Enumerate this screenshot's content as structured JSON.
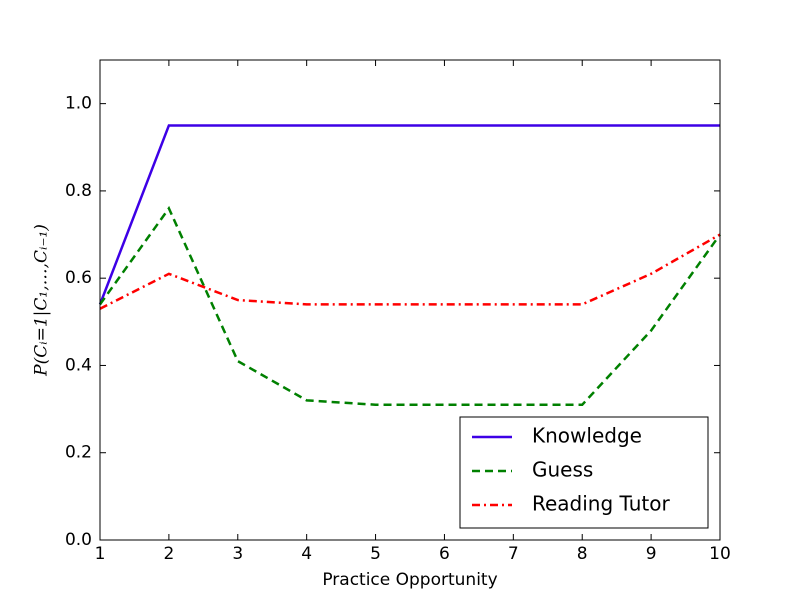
{
  "chart_data": {
    "type": "line",
    "x_label": "Practice Opportunity",
    "y_label": "P(Cᵢ=1|C₁,…,Cᵢ₋₁)",
    "x": [
      1,
      2,
      3,
      4,
      5,
      6,
      7,
      8,
      9,
      10
    ],
    "series": [
      {
        "name": "Knowledge",
        "color": "#3d00e6",
        "dash": "solid",
        "values": [
          0.54,
          0.95,
          0.95,
          0.95,
          0.95,
          0.95,
          0.95,
          0.95,
          0.95,
          0.95
        ]
      },
      {
        "name": "Guess",
        "color": "#008000",
        "dash": "dashed",
        "values": [
          0.54,
          0.76,
          0.41,
          0.32,
          0.31,
          0.31,
          0.31,
          0.31,
          0.48,
          0.7
        ]
      },
      {
        "name": "Reading Tutor",
        "color": "#ff0000",
        "dash": "dashdot",
        "values": [
          0.53,
          0.61,
          0.55,
          0.54,
          0.54,
          0.54,
          0.54,
          0.54,
          0.61,
          0.7
        ]
      }
    ],
    "xlim": [
      1,
      10
    ],
    "xticks": [
      1,
      2,
      3,
      4,
      5,
      6,
      7,
      8,
      9,
      10
    ],
    "ylim": [
      0,
      1.1
    ],
    "yticks": [
      {
        "value": 0,
        "label": "0.0"
      },
      0.2,
      0.4,
      0.6,
      0.8,
      {
        "value": 1,
        "label": "1.0"
      }
    ],
    "legend": "lower right"
  }
}
